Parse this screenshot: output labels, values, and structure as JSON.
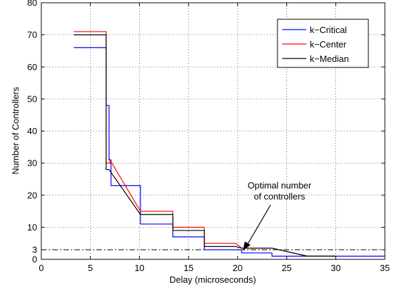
{
  "chart_data": {
    "type": "line",
    "title": "",
    "xlabel": "Delay (microseconds)",
    "ylabel": "Number of Controllers",
    "xlim": [
      0,
      35
    ],
    "ylim": [
      0,
      80
    ],
    "x_ticks": [
      0,
      5,
      10,
      15,
      20,
      25,
      30,
      35
    ],
    "y_ticks": [
      0,
      3,
      10,
      20,
      30,
      40,
      50,
      60,
      70,
      80
    ],
    "grid": true,
    "legend_position": "top-right",
    "reference_line": {
      "y": 3,
      "style": "dash-dot",
      "color": "#000000"
    },
    "annotation": {
      "lines": [
        "Optimal number",
        "of controllers"
      ],
      "arrow_target": [
        20.3,
        3
      ]
    },
    "series": [
      {
        "name": "k−Critical",
        "color": "#0000ff",
        "points": [
          [
            3.3,
            66
          ],
          [
            6.6,
            66
          ],
          [
            6.6,
            48
          ],
          [
            6.9,
            48
          ],
          [
            6.9,
            31
          ],
          [
            7.1,
            31
          ],
          [
            7.1,
            23
          ],
          [
            10.1,
            23
          ],
          [
            10.1,
            11
          ],
          [
            13.4,
            11
          ],
          [
            13.4,
            7
          ],
          [
            16.6,
            7
          ],
          [
            16.6,
            3
          ],
          [
            19.8,
            3
          ],
          [
            19.8,
            3
          ],
          [
            20.4,
            3
          ],
          [
            20.4,
            2
          ],
          [
            23.5,
            2
          ],
          [
            23.5,
            1
          ],
          [
            35,
            1
          ]
        ]
      },
      {
        "name": "k−Center",
        "color": "#ff0000",
        "points": [
          [
            3.3,
            71
          ],
          [
            6.6,
            71
          ],
          [
            6.6,
            30
          ],
          [
            7.0,
            30
          ],
          [
            7.0,
            31
          ],
          [
            10.1,
            15
          ],
          [
            13.4,
            15
          ],
          [
            13.4,
            10
          ],
          [
            16.6,
            10
          ],
          [
            16.6,
            5
          ],
          [
            19.8,
            5
          ],
          [
            20.4,
            3.5
          ],
          [
            23.5,
            3.5
          ],
          [
            27.1,
            1
          ],
          [
            30.0,
            1
          ]
        ]
      },
      {
        "name": "k−Median",
        "color": "#000000",
        "points": [
          [
            3.3,
            70
          ],
          [
            6.6,
            70
          ],
          [
            6.6,
            28
          ],
          [
            6.9,
            28
          ],
          [
            10.1,
            14
          ],
          [
            13.4,
            14
          ],
          [
            13.4,
            9
          ],
          [
            16.6,
            9
          ],
          [
            16.6,
            4
          ],
          [
            19.8,
            4
          ],
          [
            20.4,
            3.5
          ],
          [
            23.5,
            3.5
          ],
          [
            27.1,
            1
          ],
          [
            30.0,
            1
          ]
        ]
      }
    ]
  }
}
